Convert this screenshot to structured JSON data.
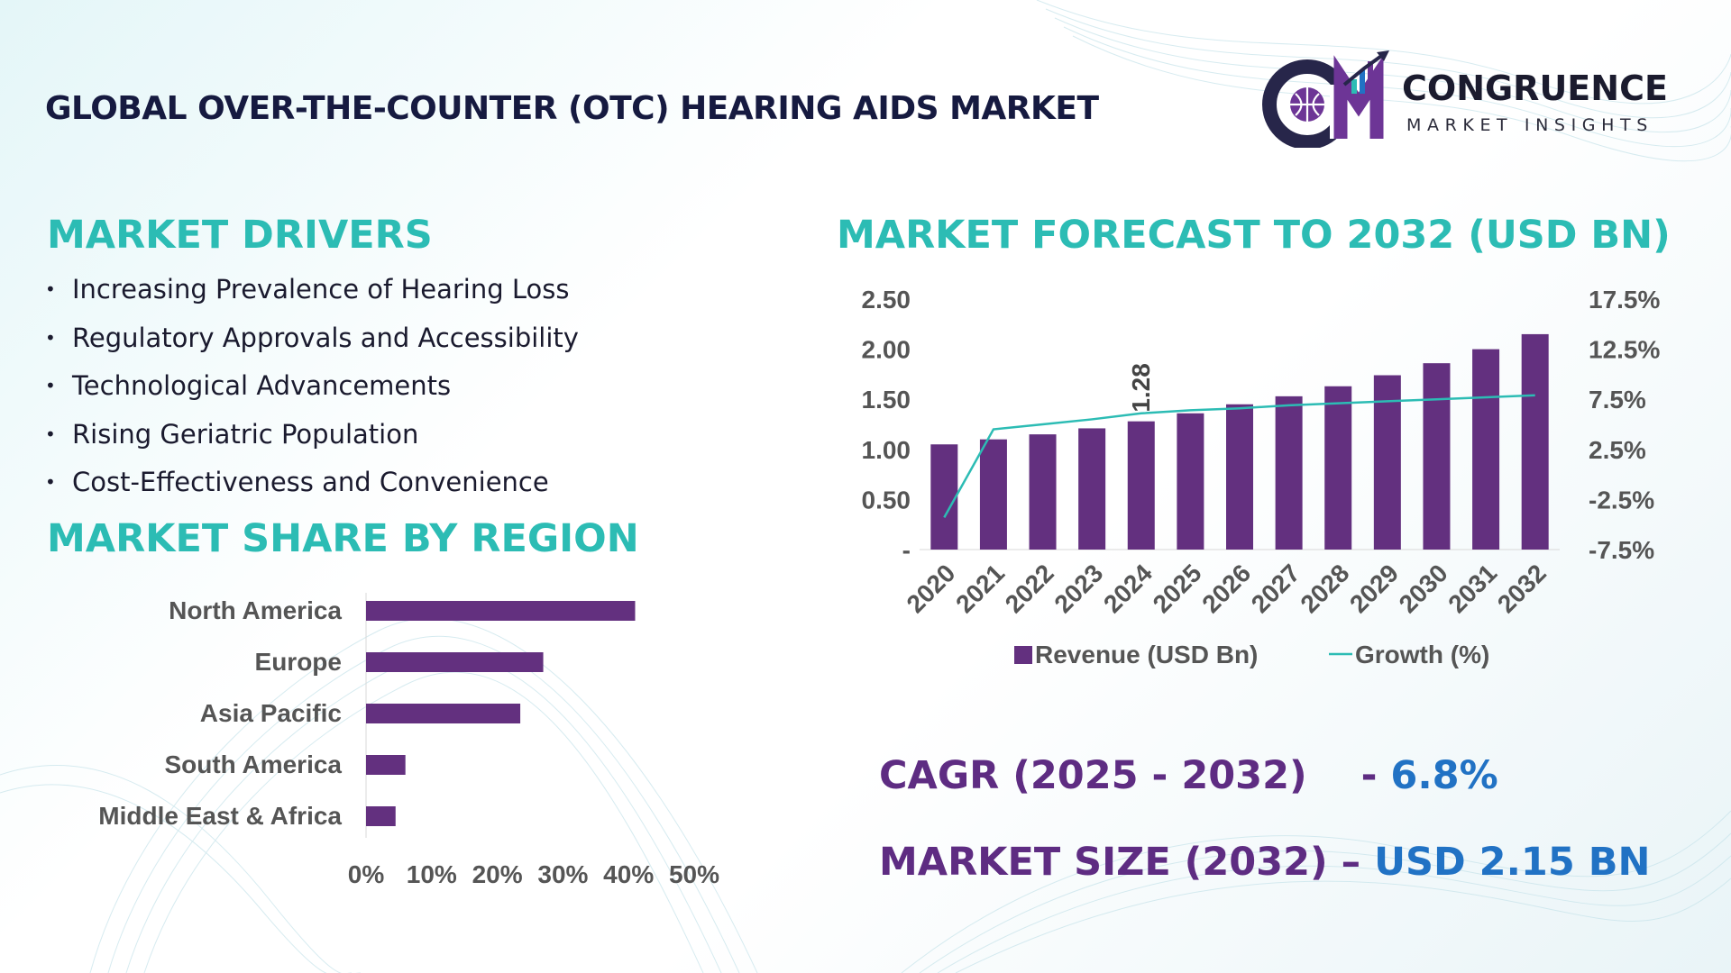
{
  "header": {
    "title": "GLOBAL OVER-THE-COUNTER (OTC) HEARING AIDS MARKET",
    "logo_name": "CONGRUENCE",
    "logo_tagline": "MARKET INSIGHTS"
  },
  "drivers": {
    "title": "MARKET DRIVERS",
    "bullet": "•",
    "items": [
      "Increasing Prevalence of Hearing Loss",
      "Regulatory Approvals and Accessibility",
      "Technological Advancements",
      "Rising Geriatric Population",
      "Cost-Effectiveness and Convenience"
    ]
  },
  "region": {
    "title": "MARKET SHARE BY REGION"
  },
  "forecast": {
    "title": "MARKET FORECAST TO 2032 (USD BN)"
  },
  "stats": {
    "cagr_label": "CAGR (2025 - 2032)",
    "cagr_sep": "-",
    "cagr_value": "6.8%",
    "size_label": "MARKET SIZE (2032)",
    "size_sep": "–",
    "size_value": "USD 2.15 BN"
  },
  "colors": {
    "bar": "#63307f",
    "line": "#2cbcb4",
    "accent_teal": "#2cbcb4",
    "accent_purple": "#5e2c82",
    "accent_blue": "#2172c4"
  },
  "chart_data": [
    {
      "type": "bar",
      "orientation": "horizontal",
      "categories": [
        "North America",
        "Europe",
        "Asia Pacific",
        "South America",
        "Middle East & Africa"
      ],
      "values": [
        41,
        27,
        23.5,
        6,
        4.5
      ],
      "xlim": [
        0,
        50
      ],
      "xticks": [
        "0%",
        "10%",
        "20%",
        "30%",
        "40%",
        "50%"
      ],
      "grid": false
    },
    {
      "type": "bar",
      "categories": [
        "2020",
        "2021",
        "2022",
        "2023",
        "2024",
        "2025",
        "2026",
        "2027",
        "2028",
        "2029",
        "2030",
        "2031",
        "2032"
      ],
      "series": [
        {
          "name": "Revenue (USD Bn)",
          "type": "bar",
          "axis": "left",
          "values": [
            1.05,
            1.1,
            1.15,
            1.21,
            1.28,
            1.36,
            1.45,
            1.53,
            1.63,
            1.74,
            1.86,
            2.0,
            2.15
          ]
        },
        {
          "name": "Growth (%)",
          "type": "line",
          "axis": "right",
          "values": [
            -4.3,
            4.5,
            5.0,
            5.5,
            6.1,
            6.4,
            6.6,
            6.9,
            7.1,
            7.3,
            7.5,
            7.7,
            7.9
          ]
        }
      ],
      "ylim": [
        0,
        2.5
      ],
      "yticks": [
        "-",
        "0.50",
        "1.00",
        "1.50",
        "2.00",
        "2.50"
      ],
      "y2lim": [
        -7.5,
        17.5
      ],
      "y2ticks": [
        "-7.5%",
        "-2.5%",
        "2.5%",
        "7.5%",
        "12.5%",
        "17.5%"
      ],
      "data_labels": [
        {
          "category": "2024",
          "text": "1.28"
        }
      ],
      "legend": "bottom",
      "grid": false
    }
  ]
}
